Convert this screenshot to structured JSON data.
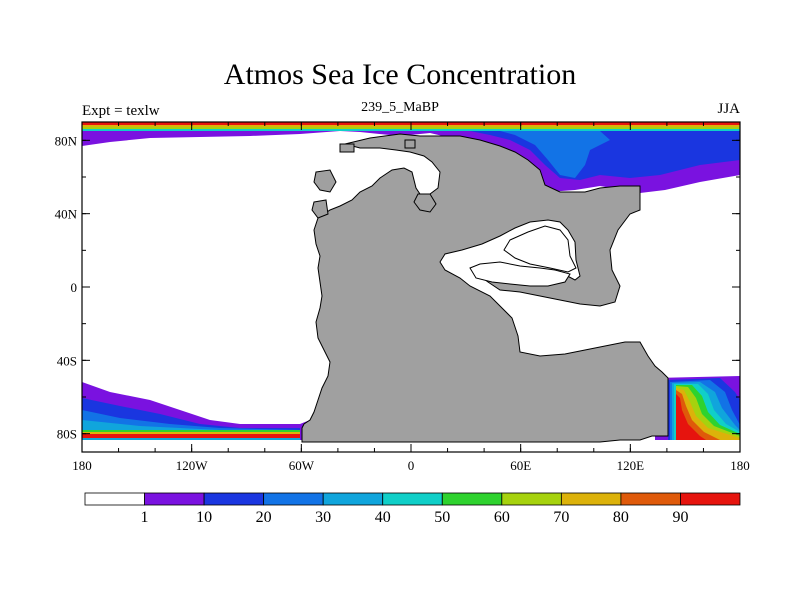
{
  "title": "Atmos Sea Ice Concentration",
  "left_label": "Expt = texlw",
  "center_label": "239_5_MaBP",
  "right_label": "JJA",
  "map": {
    "lon_ticks": [
      {
        "value": -180,
        "label": "180"
      },
      {
        "value": -120,
        "label": "120W"
      },
      {
        "value": -60,
        "label": "60W"
      },
      {
        "value": 0,
        "label": "0"
      },
      {
        "value": 60,
        "label": "60E"
      },
      {
        "value": 120,
        "label": "120E"
      },
      {
        "value": 180,
        "label": "180"
      }
    ],
    "lat_ticks": [
      {
        "value": 80,
        "label": "80N"
      },
      {
        "value": 40,
        "label": "40N"
      },
      {
        "value": 0,
        "label": "0"
      },
      {
        "value": -40,
        "label": "40S"
      },
      {
        "value": -80,
        "label": "80S"
      }
    ],
    "lon_range": [
      -180,
      180
    ],
    "lat_range": [
      -90,
      90
    ],
    "land_color": "#a0a0a0"
  },
  "colorbar": {
    "colors": [
      "#ffffff",
      "#7a12e0",
      "#1a36e0",
      "#1273e6",
      "#10a5dc",
      "#10cfc8",
      "#2ed22e",
      "#a6d20e",
      "#dcb20a",
      "#df5a0a",
      "#e6140e"
    ],
    "labels": [
      "1",
      "10",
      "20",
      "30",
      "40",
      "50",
      "60",
      "70",
      "80",
      "90"
    ]
  }
}
